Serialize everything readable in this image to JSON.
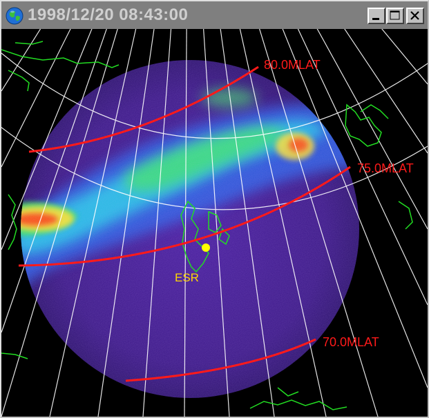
{
  "window": {
    "title": "1998/12/20 08:43:00",
    "controls": {
      "minimize": "minimize",
      "maximize": "maximize",
      "close": "close"
    }
  },
  "map": {
    "mlat_labels": [
      "80.0MLAT",
      "75.0MLAT",
      "70.0MLAT"
    ],
    "station": {
      "label": "ESR",
      "marker_color": "#ffff00"
    },
    "colors": {
      "mlat_line": "#ff1a1a",
      "mlat_text": "#ff1a1a",
      "grid": "#ffffff",
      "coastline": "#22dd22",
      "station_text": "#ffd700",
      "background": "#000000"
    }
  }
}
